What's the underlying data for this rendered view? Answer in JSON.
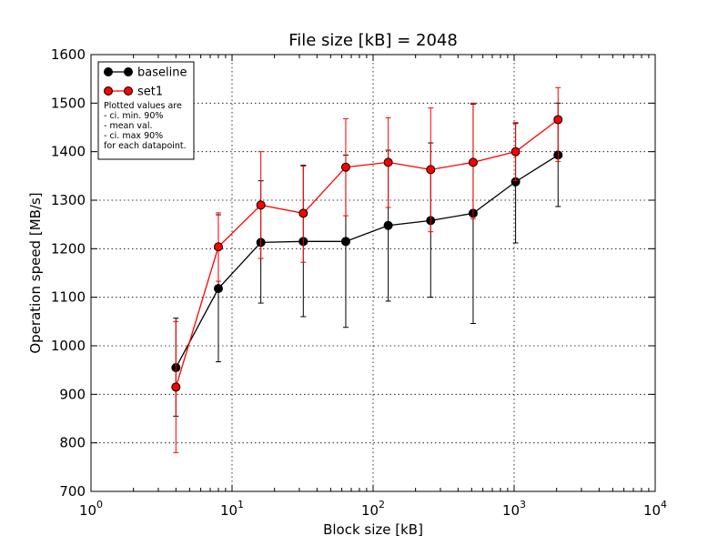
{
  "chart_data": {
    "type": "line",
    "title": "File size [kB] = 2048",
    "xlabel": "Block size [kB]",
    "ylabel": "Operation speed [MB/s]",
    "xscale": "log",
    "xlim": [
      1,
      10000
    ],
    "ylim": [
      700,
      1600
    ],
    "x_ticks": [
      {
        "base": "10",
        "exp": "0"
      },
      {
        "base": "10",
        "exp": "1"
      },
      {
        "base": "10",
        "exp": "2"
      },
      {
        "base": "10",
        "exp": "3"
      },
      {
        "base": "10",
        "exp": "4"
      }
    ],
    "y_ticks": [
      "700",
      "800",
      "900",
      "1000",
      "1100",
      "1200",
      "1300",
      "1400",
      "1500",
      "1600"
    ],
    "grid": true,
    "legend_position": "top-left",
    "legend_note": [
      "Plotted values are",
      " - ci. min. 90%",
      " - mean val.",
      " - ci. max 90%",
      "for each datapoint."
    ],
    "x": [
      4,
      8,
      16,
      32,
      64,
      128,
      256,
      512,
      1024,
      2048
    ],
    "series": [
      {
        "name": "baseline",
        "color": "#000000",
        "values": [
          955,
          1118,
          1213,
          1215,
          1215,
          1248,
          1258,
          1273,
          1338,
          1393
        ],
        "ci_min": [
          855,
          967,
          1088,
          1060,
          1038,
          1092,
          1100,
          1046,
          1212,
          1287
        ],
        "ci_max": [
          1057,
          1270,
          1340,
          1372,
          1393,
          1403,
          1418,
          1498,
          1458,
          1500
        ]
      },
      {
        "name": "set1",
        "color": "#ff0000",
        "values": [
          915,
          1204,
          1290,
          1273,
          1368,
          1378,
          1363,
          1378,
          1400,
          1466
        ],
        "ci_min": [
          780,
          1133,
          1180,
          1172,
          1268,
          1285,
          1235,
          1262,
          1340,
          1380
        ],
        "ci_max": [
          1050,
          1274,
          1400,
          1370,
          1468,
          1470,
          1490,
          1500,
          1460,
          1532
        ]
      }
    ]
  }
}
